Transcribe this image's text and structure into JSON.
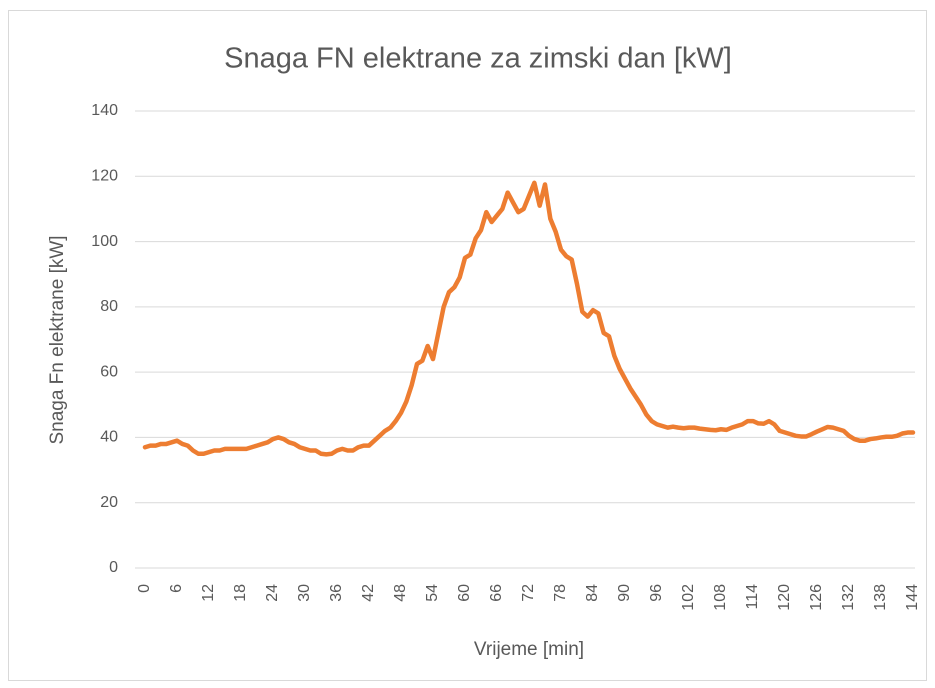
{
  "chart_data": {
    "type": "line",
    "title": "Snaga FN elektrane za zimski dan [kW]",
    "x_label": "Vrijeme [min]",
    "y_label": "Snaga Fn elektrane [kW]",
    "color": "#ed7d31",
    "grid": true,
    "xlim": [
      0,
      144
    ],
    "ylim": [
      0,
      140
    ],
    "yticks": [
      0,
      20,
      40,
      60,
      80,
      100,
      120,
      140
    ],
    "xticks": [
      0,
      6,
      12,
      18,
      24,
      30,
      36,
      42,
      48,
      54,
      60,
      66,
      72,
      78,
      84,
      90,
      96,
      102,
      108,
      114,
      120,
      126,
      132,
      138,
      144
    ],
    "x": [
      0,
      1,
      2,
      3,
      4,
      5,
      6,
      7,
      8,
      9,
      10,
      11,
      12,
      13,
      14,
      15,
      16,
      17,
      18,
      19,
      20,
      21,
      22,
      23,
      24,
      25,
      26,
      27,
      28,
      29,
      30,
      31,
      32,
      33,
      34,
      35,
      36,
      37,
      38,
      39,
      40,
      41,
      42,
      43,
      44,
      45,
      46,
      47,
      48,
      49,
      50,
      51,
      52,
      53,
      54,
      55,
      56,
      57,
      58,
      59,
      60,
      61,
      62,
      63,
      64,
      65,
      66,
      67,
      68,
      69,
      70,
      71,
      72,
      73,
      74,
      75,
      76,
      77,
      78,
      79,
      80,
      81,
      82,
      83,
      84,
      85,
      86,
      87,
      88,
      89,
      90,
      91,
      92,
      93,
      94,
      95,
      96,
      97,
      98,
      99,
      100,
      101,
      102,
      103,
      104,
      105,
      106,
      107,
      108,
      109,
      110,
      111,
      112,
      113,
      114,
      115,
      116,
      117,
      118,
      119,
      120,
      121,
      122,
      123,
      124,
      125,
      126,
      127,
      128,
      129,
      130,
      131,
      132,
      133,
      134,
      135,
      136,
      137,
      138,
      139,
      140,
      141,
      142,
      143,
      144
    ],
    "values": [
      37,
      37.5,
      37.5,
      38,
      38,
      38.5,
      39,
      38,
      37.5,
      36,
      35,
      35,
      35.5,
      36,
      36,
      36.5,
      36.5,
      36.5,
      36.5,
      36.5,
      37,
      37.5,
      38,
      38.5,
      39.5,
      40,
      39.5,
      38.5,
      38,
      37,
      36.5,
      36,
      36,
      35,
      34.8,
      35,
      36,
      36.5,
      36,
      36,
      37,
      37.5,
      37.5,
      39,
      40.5,
      42,
      43,
      45,
      47.5,
      51,
      56,
      62.5,
      63.5,
      68,
      64,
      72,
      80,
      84.5,
      86,
      89,
      95,
      96,
      101,
      103.5,
      109,
      106,
      108,
      110,
      115,
      112,
      109,
      110,
      114,
      118,
      111,
      117.5,
      107,
      103,
      97.5,
      95.5,
      94.5,
      87,
      78.5,
      77,
      79,
      78,
      72,
      71,
      65,
      61,
      58,
      55,
      52.5,
      50,
      47,
      45,
      44,
      43.5,
      43,
      43.3,
      43,
      42.8,
      43,
      43,
      42.7,
      42.5,
      42.3,
      42.2,
      42.5,
      42.3,
      43,
      43.5,
      44,
      45,
      45,
      44.3,
      44.2,
      45,
      44,
      42,
      41.5,
      41,
      40.5,
      40.3,
      40.3,
      41,
      41.8,
      42.5,
      43.2,
      43,
      42.5,
      42,
      40.5,
      39.5,
      39,
      39,
      39.5,
      39.7,
      40,
      40.2,
      40.2,
      40.5,
      41.2,
      41.5,
      41.5
    ]
  }
}
